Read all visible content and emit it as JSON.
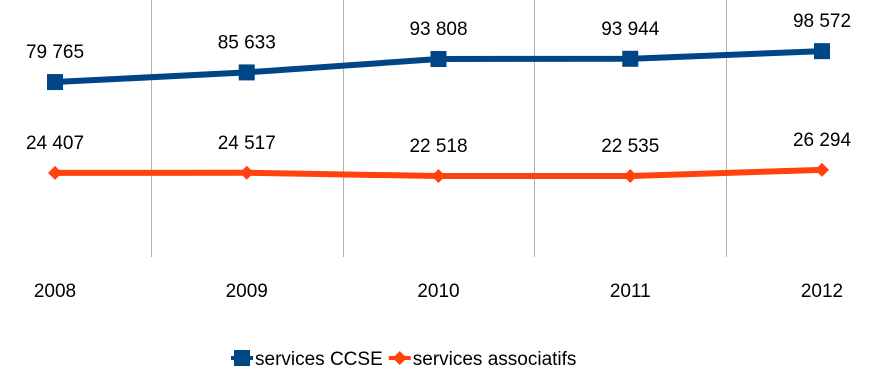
{
  "chart_data": {
    "type": "line",
    "categories": [
      "2008",
      "2009",
      "2010",
      "2011",
      "2012"
    ],
    "series": [
      {
        "name": "services CCSE",
        "values": [
          79765,
          85633,
          93808,
          93944,
          98572
        ],
        "labels": [
          "79 765",
          "85 633",
          "93 808",
          "93 944",
          "98 572"
        ],
        "color": "#004586",
        "marker": "square"
      },
      {
        "name": "services associatifs",
        "values": [
          24407,
          24517,
          22518,
          22535,
          26294
        ],
        "labels": [
          "24 407",
          "24 517",
          "22 518",
          "22 535",
          "26 294"
        ],
        "color": "#ff420e",
        "marker": "diamond"
      }
    ],
    "ylim": [
      0,
      120000
    ],
    "grid": "vertical",
    "legend": "bottom"
  }
}
